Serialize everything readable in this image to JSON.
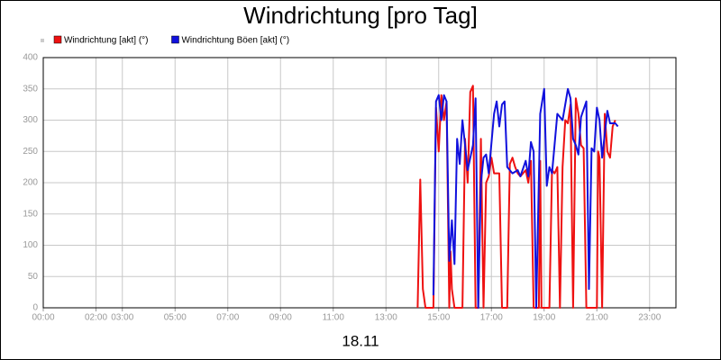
{
  "chart_data": {
    "type": "line",
    "title": "Windrichtung [pro Tag]",
    "xlabel": "18.11",
    "xlim": [
      0,
      24
    ],
    "xticks": [
      {
        "value": 0,
        "label": "00:00"
      },
      {
        "value": 2,
        "label": "02:00"
      },
      {
        "value": 3,
        "label": "03:00"
      },
      {
        "value": 5,
        "label": "05:00"
      },
      {
        "value": 7,
        "label": "07:00"
      },
      {
        "value": 9,
        "label": "09:00"
      },
      {
        "value": 11,
        "label": "11:00"
      },
      {
        "value": 13,
        "label": "13:00"
      },
      {
        "value": 15,
        "label": "15:00"
      },
      {
        "value": 17,
        "label": "17:00"
      },
      {
        "value": 19,
        "label": "19:00"
      },
      {
        "value": 21,
        "label": "21:00"
      },
      {
        "value": 23,
        "label": "23:00"
      }
    ],
    "ylim": [
      0,
      400
    ],
    "yticks": [
      0,
      50,
      100,
      150,
      200,
      250,
      300,
      350,
      400
    ],
    "grid": true,
    "legend": "top-left",
    "series": [
      {
        "name": "Windrichtung [akt] (°)",
        "color": "#ee1111",
        "x": [
          14.2,
          14.3,
          14.4,
          14.5,
          14.8,
          14.9,
          15.0,
          15.1,
          15.2,
          15.3,
          15.4,
          15.45,
          15.5,
          15.6,
          15.9,
          16.0,
          16.1,
          16.2,
          16.3,
          16.4,
          16.5,
          16.6,
          16.7,
          16.8,
          16.9,
          17.0,
          17.1,
          17.3,
          17.4,
          17.6,
          17.7,
          17.8,
          17.9,
          18.0,
          18.1,
          18.3,
          18.4,
          18.5,
          18.6,
          18.8,
          18.85,
          18.9,
          19.2,
          19.3,
          19.4,
          19.5,
          19.6,
          19.7,
          19.8,
          19.9,
          20.0,
          20.1,
          20.2,
          20.3,
          20.4,
          20.5,
          20.6,
          21.0,
          21.05,
          21.1,
          21.2,
          21.3,
          21.4,
          21.5,
          21.6,
          21.7
        ],
        "values": [
          0,
          205,
          30,
          0,
          0,
          320,
          250,
          340,
          300,
          330,
          0,
          90,
          30,
          0,
          0,
          270,
          200,
          345,
          355,
          0,
          0,
          270,
          0,
          200,
          210,
          240,
          215,
          215,
          0,
          0,
          230,
          240,
          225,
          215,
          210,
          220,
          200,
          235,
          0,
          0,
          235,
          0,
          0,
          220,
          215,
          225,
          0,
          225,
          300,
          295,
          325,
          0,
          335,
          310,
          260,
          255,
          0,
          0,
          250,
          240,
          0,
          310,
          250,
          240,
          290,
          300
        ]
      },
      {
        "name": "Windrichtung Böen [akt] (°)",
        "color": "#1111dd",
        "x": [
          14.8,
          14.9,
          15.0,
          15.1,
          15.2,
          15.3,
          15.4,
          15.5,
          15.6,
          15.7,
          15.8,
          15.9,
          16.0,
          16.1,
          16.3,
          16.4,
          16.5,
          16.6,
          16.7,
          16.8,
          16.9,
          17.1,
          17.2,
          17.3,
          17.4,
          17.5,
          17.6,
          17.8,
          18.0,
          18.1,
          18.3,
          18.4,
          18.5,
          18.6,
          18.7,
          18.85,
          19.0,
          19.1,
          19.2,
          19.3,
          19.5,
          19.6,
          19.7,
          19.8,
          19.9,
          20.0,
          20.1,
          20.2,
          20.3,
          20.4,
          20.6,
          20.7,
          20.8,
          20.9,
          21.0,
          21.1,
          21.2,
          21.4,
          21.5,
          21.7,
          21.8
        ],
        "values": [
          20,
          330,
          340,
          300,
          340,
          330,
          75,
          140,
          70,
          270,
          230,
          300,
          260,
          220,
          260,
          335,
          0,
          200,
          240,
          245,
          215,
          310,
          330,
          290,
          325,
          330,
          225,
          215,
          220,
          210,
          235,
          210,
          265,
          250,
          0,
          310,
          350,
          195,
          225,
          215,
          310,
          305,
          300,
          325,
          350,
          335,
          270,
          260,
          245,
          305,
          330,
          30,
          255,
          250,
          320,
          300,
          240,
          315,
          295,
          295,
          290
        ]
      }
    ]
  }
}
